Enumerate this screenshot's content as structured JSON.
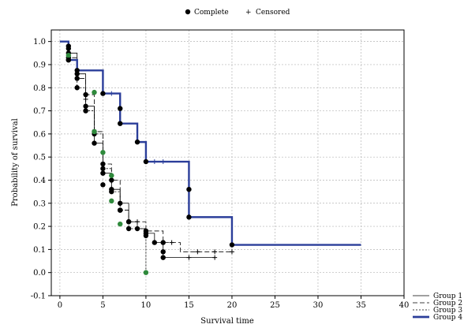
{
  "chart_data": {
    "type": "line",
    "title": "",
    "xlabel": "Survival time",
    "ylabel": "Probability of survival",
    "xlim": [
      -1,
      40
    ],
    "ylim": [
      -0.1,
      1.05
    ],
    "xticks": [
      "0",
      "5",
      "10",
      "15",
      "20",
      "25",
      "30",
      "35",
      "40"
    ],
    "yticks": [
      "-0.1",
      "0.0",
      "0.1",
      "0.2",
      "0.3",
      "0.4",
      "0.5",
      "0.6",
      "0.7",
      "0.8",
      "0.9",
      "1.0"
    ],
    "grid": true,
    "top_legend": {
      "complete": "Complete",
      "censored": "Censored"
    },
    "legend_position": "bottom-right",
    "series": [
      {
        "name": "Group 1",
        "style": "solid-thin",
        "color": "#000000",
        "steps": [
          [
            0,
            1.0
          ],
          [
            1,
            0.95
          ],
          [
            2,
            0.86
          ],
          [
            3,
            0.72
          ],
          [
            4,
            0.56
          ],
          [
            5,
            0.43
          ],
          [
            6,
            0.36
          ],
          [
            7,
            0.3
          ],
          [
            8,
            0.22
          ],
          [
            9,
            0.19
          ],
          [
            10,
            0.17
          ],
          [
            11,
            0.13
          ],
          [
            12,
            0.065
          ],
          [
            18,
            0.065
          ]
        ],
        "complete": [
          [
            1,
            0.97
          ],
          [
            1,
            0.95
          ],
          [
            2,
            0.86
          ],
          [
            3,
            0.72
          ],
          [
            4,
            0.56
          ],
          [
            5,
            0.43
          ],
          [
            5,
            0.38
          ],
          [
            6,
            0.36
          ],
          [
            7,
            0.3
          ],
          [
            8,
            0.22
          ],
          [
            9,
            0.19
          ],
          [
            10,
            0.17
          ],
          [
            11,
            0.13
          ],
          [
            12,
            0.09
          ],
          [
            12,
            0.065
          ]
        ],
        "censored": [
          [
            15,
            0.065
          ],
          [
            18,
            0.065
          ]
        ]
      },
      {
        "name": "Group 2",
        "style": "dash",
        "color": "#000000",
        "steps": [
          [
            0,
            1.0
          ],
          [
            1,
            0.93
          ],
          [
            2,
            0.84
          ],
          [
            3,
            0.77
          ],
          [
            4,
            0.61
          ],
          [
            5,
            0.47
          ],
          [
            6,
            0.4
          ],
          [
            7,
            0.27
          ],
          [
            8,
            0.22
          ],
          [
            10,
            0.18
          ],
          [
            12,
            0.13
          ],
          [
            14,
            0.09
          ],
          [
            20,
            0.09
          ]
        ],
        "complete": [
          [
            1,
            0.98
          ],
          [
            1,
            0.93
          ],
          [
            2,
            0.84
          ],
          [
            3,
            0.77
          ],
          [
            4,
            0.61
          ],
          [
            5,
            0.47
          ],
          [
            6,
            0.4
          ],
          [
            7,
            0.27
          ],
          [
            8,
            0.22
          ],
          [
            10,
            0.18
          ],
          [
            12,
            0.13
          ]
        ],
        "censored": [
          [
            9,
            0.22
          ],
          [
            13,
            0.13
          ],
          [
            16,
            0.09
          ],
          [
            18,
            0.09
          ],
          [
            20,
            0.09
          ]
        ]
      },
      {
        "name": "Group 3",
        "style": "dotted",
        "color": "#000000",
        "steps": [
          [
            0,
            1.0
          ],
          [
            1,
            0.92
          ],
          [
            2,
            0.8
          ],
          [
            3,
            0.7
          ],
          [
            4,
            0.6
          ],
          [
            5,
            0.45
          ],
          [
            6,
            0.35
          ],
          [
            7,
            0.27
          ],
          [
            8,
            0.19
          ],
          [
            10,
            0.16
          ],
          [
            10,
            0.0
          ]
        ],
        "complete": [
          [
            1,
            0.92
          ],
          [
            2,
            0.8
          ],
          [
            3,
            0.7
          ],
          [
            4,
            0.6
          ],
          [
            5,
            0.45
          ],
          [
            6,
            0.35
          ],
          [
            7,
            0.27
          ],
          [
            8,
            0.19
          ],
          [
            10,
            0.16
          ]
        ],
        "complete_green": [
          [
            1,
            0.94
          ],
          [
            4,
            0.78
          ],
          [
            4,
            0.61
          ],
          [
            5,
            0.52
          ],
          [
            6,
            0.42
          ],
          [
            6,
            0.31
          ],
          [
            7,
            0.21
          ],
          [
            10,
            0.0
          ]
        ],
        "censored": [
          [
            3,
            0.75
          ],
          [
            9,
            0.19
          ]
        ]
      },
      {
        "name": "Group 4",
        "style": "solid-thick",
        "color": "#2b3e9a",
        "steps": [
          [
            0,
            1.0
          ],
          [
            1,
            0.92
          ],
          [
            2,
            0.875
          ],
          [
            5,
            0.775
          ],
          [
            7,
            0.645
          ],
          [
            9,
            0.565
          ],
          [
            10,
            0.48
          ],
          [
            15,
            0.24
          ],
          [
            20,
            0.12
          ],
          [
            35,
            0.12
          ]
        ],
        "complete": [
          [
            1,
            0.92
          ],
          [
            2,
            0.875
          ],
          [
            5,
            0.775
          ],
          [
            7,
            0.71
          ],
          [
            7,
            0.645
          ],
          [
            9,
            0.565
          ],
          [
            10,
            0.48
          ],
          [
            15,
            0.36
          ],
          [
            15,
            0.24
          ],
          [
            20,
            0.12
          ]
        ],
        "censored": [
          [
            6,
            0.775
          ],
          [
            11,
            0.48
          ],
          [
            12,
            0.48
          ]
        ]
      }
    ]
  }
}
